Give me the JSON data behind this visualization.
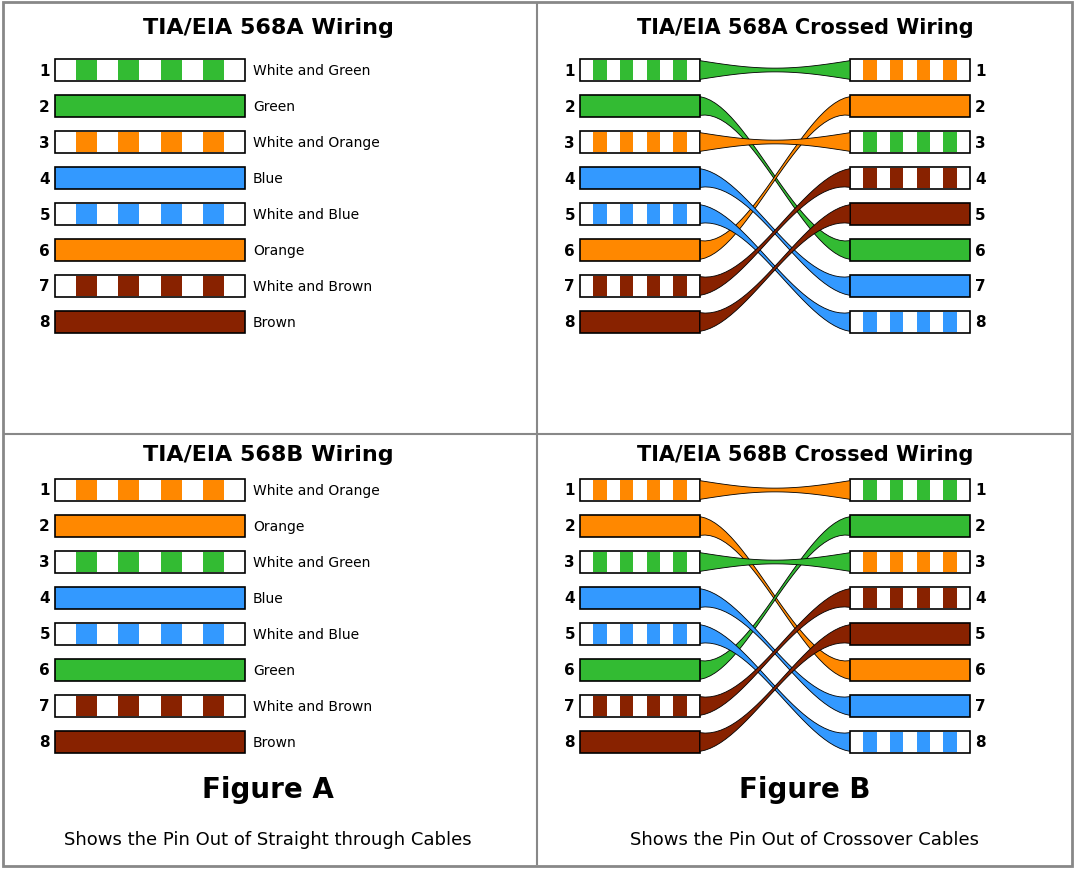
{
  "bg_color": "#ffffff",
  "border_color": "#888888",
  "divider_color": "#888888",
  "title_568A": "TIA/EIA 568A Wiring",
  "title_568B": "TIA/EIA 568B Wiring",
  "title_568A_cross": "TIA/EIA 568A Crossed Wiring",
  "title_568B_cross": "TIA/EIA 568B Crossed Wiring",
  "figure_A": "Figure A",
  "figure_B": "Figure B",
  "caption_A": "Shows the Pin Out of Straight through Cables",
  "caption_B": "Shows the Pin Out of Crossover Cables",
  "568A_wires": [
    {
      "pin": 1,
      "type": "striped",
      "color": "#33bb33",
      "label": "White and Green"
    },
    {
      "pin": 2,
      "type": "solid",
      "color": "#33bb33",
      "label": "Green"
    },
    {
      "pin": 3,
      "type": "striped",
      "color": "#ff8800",
      "label": "White and Orange"
    },
    {
      "pin": 4,
      "type": "solid",
      "color": "#3399ff",
      "label": "Blue"
    },
    {
      "pin": 5,
      "type": "striped",
      "color": "#3399ff",
      "label": "White and Blue"
    },
    {
      "pin": 6,
      "type": "solid",
      "color": "#ff8800",
      "label": "Orange"
    },
    {
      "pin": 7,
      "type": "striped",
      "color": "#882200",
      "label": "White and Brown"
    },
    {
      "pin": 8,
      "type": "solid",
      "color": "#882200",
      "label": "Brown"
    }
  ],
  "568B_wires": [
    {
      "pin": 1,
      "type": "striped",
      "color": "#ff8800",
      "label": "White and Orange"
    },
    {
      "pin": 2,
      "type": "solid",
      "color": "#ff8800",
      "label": "Orange"
    },
    {
      "pin": 3,
      "type": "striped",
      "color": "#33bb33",
      "label": "White and Green"
    },
    {
      "pin": 4,
      "type": "solid",
      "color": "#3399ff",
      "label": "Blue"
    },
    {
      "pin": 5,
      "type": "striped",
      "color": "#3399ff",
      "label": "White and Blue"
    },
    {
      "pin": 6,
      "type": "solid",
      "color": "#33bb33",
      "label": "Green"
    },
    {
      "pin": 7,
      "type": "striped",
      "color": "#882200",
      "label": "White and Brown"
    },
    {
      "pin": 8,
      "type": "solid",
      "color": "#882200",
      "label": "Brown"
    }
  ],
  "568A_cross_left": [
    {
      "pin": 1,
      "type": "striped",
      "color": "#33bb33"
    },
    {
      "pin": 2,
      "type": "solid",
      "color": "#33bb33"
    },
    {
      "pin": 3,
      "type": "striped",
      "color": "#ff8800"
    },
    {
      "pin": 4,
      "type": "solid",
      "color": "#3399ff"
    },
    {
      "pin": 5,
      "type": "striped",
      "color": "#3399ff"
    },
    {
      "pin": 6,
      "type": "solid",
      "color": "#ff8800"
    },
    {
      "pin": 7,
      "type": "striped",
      "color": "#882200"
    },
    {
      "pin": 8,
      "type": "solid",
      "color": "#882200"
    }
  ],
  "568A_cross_right": [
    {
      "pin": 1,
      "type": "striped",
      "color": "#ff8800"
    },
    {
      "pin": 2,
      "type": "solid",
      "color": "#ff8800"
    },
    {
      "pin": 3,
      "type": "striped",
      "color": "#33bb33"
    },
    {
      "pin": 4,
      "type": "striped",
      "color": "#882200"
    },
    {
      "pin": 5,
      "type": "solid",
      "color": "#882200"
    },
    {
      "pin": 6,
      "type": "solid",
      "color": "#33bb33"
    },
    {
      "pin": 7,
      "type": "solid",
      "color": "#3399ff"
    },
    {
      "pin": 8,
      "type": "striped",
      "color": "#3399ff"
    }
  ],
  "568A_cross_map": [
    0,
    5,
    2,
    6,
    7,
    1,
    3,
    4
  ],
  "568B_cross_left": [
    {
      "pin": 1,
      "type": "striped",
      "color": "#ff8800"
    },
    {
      "pin": 2,
      "type": "solid",
      "color": "#ff8800"
    },
    {
      "pin": 3,
      "type": "striped",
      "color": "#33bb33"
    },
    {
      "pin": 4,
      "type": "solid",
      "color": "#3399ff"
    },
    {
      "pin": 5,
      "type": "striped",
      "color": "#3399ff"
    },
    {
      "pin": 6,
      "type": "solid",
      "color": "#33bb33"
    },
    {
      "pin": 7,
      "type": "striped",
      "color": "#882200"
    },
    {
      "pin": 8,
      "type": "solid",
      "color": "#882200"
    }
  ],
  "568B_cross_right": [
    {
      "pin": 1,
      "type": "striped",
      "color": "#33bb33"
    },
    {
      "pin": 2,
      "type": "solid",
      "color": "#33bb33"
    },
    {
      "pin": 3,
      "type": "striped",
      "color": "#ff8800"
    },
    {
      "pin": 4,
      "type": "striped",
      "color": "#882200"
    },
    {
      "pin": 5,
      "type": "solid",
      "color": "#882200"
    },
    {
      "pin": 6,
      "type": "solid",
      "color": "#ff8800"
    },
    {
      "pin": 7,
      "type": "solid",
      "color": "#3399ff"
    },
    {
      "pin": 8,
      "type": "striped",
      "color": "#3399ff"
    }
  ],
  "568B_cross_map": [
    0,
    5,
    2,
    6,
    7,
    1,
    3,
    4
  ]
}
